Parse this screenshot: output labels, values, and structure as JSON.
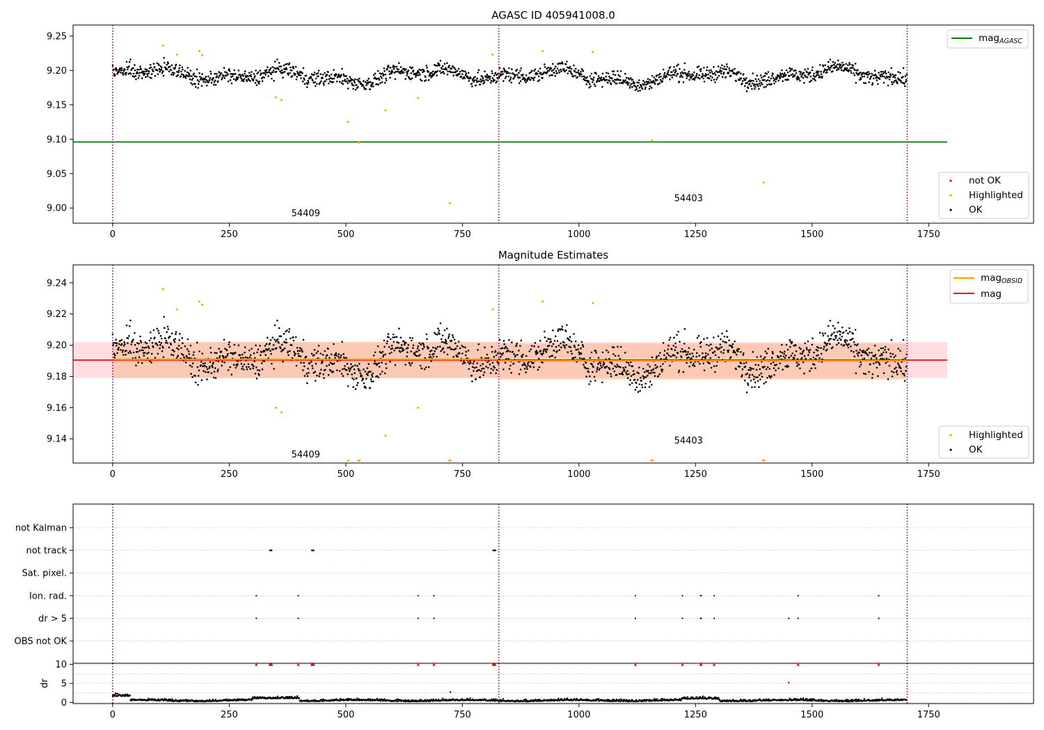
{
  "chart_data": [
    {
      "type": "scatter",
      "title": "AGASC ID 405941008.0",
      "xlim": [
        -85,
        1975
      ],
      "ylim": [
        8.978,
        9.266
      ],
      "x_ticks": [
        0,
        250,
        500,
        750,
        1000,
        1250,
        1500,
        1750
      ],
      "y_ticks": [
        9.0,
        9.05,
        9.1,
        9.15,
        9.2,
        9.25
      ],
      "y_tick_labels": [
        "9.00",
        "9.05",
        "9.10",
        "9.15",
        "9.20",
        "9.25"
      ],
      "obsid_boundaries": [
        0,
        828,
        1704
      ],
      "reference_line": {
        "y": 9.096,
        "x_range": [
          -85,
          1790
        ],
        "color": "#008000"
      },
      "annotations": [
        {
          "text": "54409",
          "x": 414,
          "y": 8.988
        },
        {
          "text": "54403",
          "x": 1235,
          "y": 9.01
        }
      ],
      "ok_series": {
        "name": "OK",
        "color": "#000000",
        "n_points": 1704,
        "segments": [
          {
            "x_range": [
              0,
              827
            ],
            "level": 9.193
          },
          {
            "x_range": [
              828,
              1703
            ],
            "level": 9.192
          }
        ]
      },
      "highlighted": {
        "name": "Highlighted",
        "color": "#ffa500",
        "points": [
          [
            108,
            9.236
          ],
          [
            138,
            9.223
          ],
          [
            186,
            9.228
          ],
          [
            192,
            9.222
          ],
          [
            350,
            9.161
          ],
          [
            362,
            9.157
          ],
          [
            505,
            9.125
          ],
          [
            528,
            9.095
          ],
          [
            585,
            9.142
          ],
          [
            655,
            9.16
          ],
          [
            723,
            9.007
          ],
          [
            815,
            9.223
          ],
          [
            922,
            9.228
          ],
          [
            1030,
            9.227
          ],
          [
            1157,
            9.098
          ],
          [
            1396,
            9.037
          ]
        ]
      },
      "not_ok": {
        "name": "not OK",
        "color": "#ff0000",
        "points": []
      },
      "legends": [
        {
          "position": "top-right",
          "items": [
            {
              "label": "mag",
              "sub": "AGASC",
              "kind": "line",
              "color": "#008000"
            }
          ]
        },
        {
          "position": "bottom-right",
          "items": [
            {
              "label": "not OK",
              "kind": "dot",
              "color": "#ff0000"
            },
            {
              "label": "Highlighted",
              "kind": "dot",
              "color": "#ffa500"
            },
            {
              "label": "OK",
              "kind": "dot",
              "color": "#000000"
            }
          ]
        }
      ]
    },
    {
      "type": "scatter",
      "title": "Magnitude Estimates",
      "xlim": [
        -85,
        1975
      ],
      "ylim": [
        9.1245,
        9.2515
      ],
      "x_ticks": [
        0,
        250,
        500,
        750,
        1000,
        1250,
        1500,
        1750
      ],
      "y_ticks": [
        9.14,
        9.16,
        9.18,
        9.2,
        9.22,
        9.24
      ],
      "y_tick_labels": [
        "9.14",
        "9.16",
        "9.18",
        "9.20",
        "9.22",
        "9.24"
      ],
      "obsid_boundaries": [
        0,
        828,
        1704
      ],
      "mag_line": {
        "y": 9.1905,
        "x_range": [
          -85,
          1790
        ],
        "color": "#ff0000"
      },
      "mag_band": {
        "y_range": [
          9.179,
          9.202
        ],
        "x_range": [
          -85,
          1790
        ],
        "color": "#ffdde3"
      },
      "obsid_mag": [
        {
          "y": 9.191,
          "x_range": [
            0,
            827
          ],
          "color": "#ffa500"
        },
        {
          "y": 9.19,
          "x_range": [
            828,
            1703
          ],
          "color": "#ffa500"
        }
      ],
      "obsid_bands": [
        {
          "y_range": [
            9.179,
            9.202
          ],
          "x_range": [
            0,
            827
          ],
          "color": "#f9b27b"
        },
        {
          "y_range": [
            9.178,
            9.201
          ],
          "x_range": [
            828,
            1703
          ],
          "color": "#f9b27b"
        }
      ],
      "annotations": [
        {
          "text": "54409",
          "x": 414,
          "y": 9.128
        },
        {
          "text": "54403",
          "x": 1235,
          "y": 9.137
        }
      ],
      "ok_series": {
        "name": "OK",
        "color": "#000000",
        "n_points": 1704,
        "segments": [
          {
            "x_range": [
              0,
              827
            ],
            "level": 9.191
          },
          {
            "x_range": [
              828,
              1703
            ],
            "level": 9.19
          }
        ]
      },
      "highlighted": {
        "name": "Highlighted",
        "color": "#ffa500",
        "points": [
          [
            108,
            9.236
          ],
          [
            138,
            9.223
          ],
          [
            186,
            9.228
          ],
          [
            192,
            9.226
          ],
          [
            350,
            9.16
          ],
          [
            362,
            9.157
          ],
          [
            505,
            9.126
          ],
          [
            585,
            9.142
          ],
          [
            655,
            9.16
          ],
          [
            815,
            9.223
          ],
          [
            922,
            9.228
          ],
          [
            1030,
            9.227
          ]
        ]
      },
      "off_scale_markers": {
        "symbol": "triangle-down",
        "color": "#ffa500",
        "x": [
          528,
          723,
          1157,
          1396
        ]
      },
      "legends": [
        {
          "position": "top-right",
          "items": [
            {
              "label": "mag",
              "sub": "OBSID",
              "kind": "line",
              "color": "#ffa500"
            },
            {
              "label": "mag",
              "kind": "line",
              "color": "#ff0000"
            }
          ]
        },
        {
          "position": "bottom-right",
          "items": [
            {
              "label": "Highlighted",
              "kind": "dot",
              "color": "#ffa500"
            },
            {
              "label": "OK",
              "kind": "dot",
              "color": "#000000"
            }
          ]
        }
      ]
    },
    {
      "type": "scatter",
      "title": "",
      "xlim": [
        -85,
        1975
      ],
      "x_ticks": [
        0,
        250,
        500,
        750,
        1000,
        1250,
        1500,
        1750
      ],
      "obsid_boundaries": [
        0,
        828,
        1704
      ],
      "flag_rows": [
        "not Kalman",
        "not track",
        "Sat. pixel.",
        "Ion. rad.",
        "dr > 5",
        "OBS not OK"
      ],
      "flags": {
        "not Kalman": [],
        "not track": [
          337,
          338,
          339,
          340,
          341,
          427,
          428,
          429,
          430,
          431,
          816,
          817,
          818,
          819,
          820,
          821
        ],
        "Sat. pixel.": [],
        "Ion. rad.": [
          308,
          398,
          655,
          689,
          1121,
          1222,
          1261,
          1262,
          1290,
          1470,
          1643
        ],
        "dr > 5": [
          308,
          398,
          655,
          689,
          1121,
          1222,
          1261,
          1262,
          1290,
          1450,
          1470,
          1643
        ],
        "OBS not OK": []
      }
    },
    {
      "type": "scatter",
      "title": "",
      "ylabel": "dr",
      "xlim": [
        -85,
        1975
      ],
      "ylim": [
        -0.3,
        10.3
      ],
      "x_ticks": [
        0,
        250,
        500,
        750,
        1000,
        1250,
        1500,
        1750
      ],
      "y_ticks": [
        0,
        5,
        10
      ],
      "y_tick_labels": [
        "0",
        "5",
        "10"
      ],
      "obsid_boundaries": [
        0,
        828,
        1704
      ],
      "n_points": 1704,
      "clipped_markers": {
        "symbol": "triangle-up",
        "color": "#ff0000",
        "y": 10,
        "x": [
          308,
          337,
          338,
          339,
          340,
          341,
          398,
          427,
          428,
          429,
          430,
          431,
          655,
          689,
          816,
          817,
          818,
          819,
          820,
          1121,
          1222,
          1261,
          1262,
          1290,
          1470,
          1643
        ]
      },
      "high_points": {
        "color": "#ff0000",
        "points": [
          [
            1450,
            5.2
          ]
        ]
      },
      "outliers": {
        "color": "#000000",
        "points": [
          [
            724,
            2.7
          ]
        ]
      }
    }
  ]
}
